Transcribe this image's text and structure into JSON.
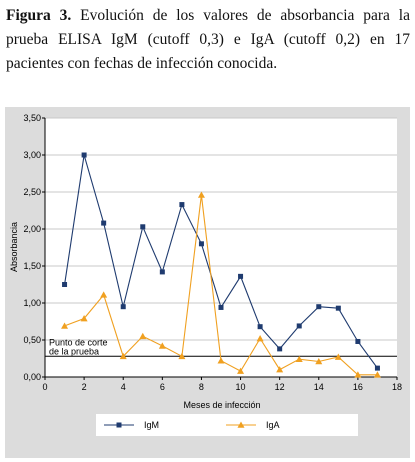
{
  "caption": {
    "label": "Figura 3.",
    "text": " Evolución de los valores de absorbancia para la prueba ELISA IgM (cutoff 0,3) e IgA (cutoff 0,2) en 17 pacientes con fechas de infección conocida."
  },
  "chart_data": {
    "type": "line",
    "xlabel": "Meses de infección",
    "ylabel": "Absorbancia",
    "xlim": [
      0,
      18
    ],
    "ylim": [
      0,
      3.5
    ],
    "x_ticks": [
      "0",
      "2",
      "4",
      "6",
      "8",
      "10",
      "12",
      "14",
      "16",
      "18"
    ],
    "y_ticks": [
      "0,00",
      "0,50",
      "1,00",
      "1,50",
      "2,00",
      "2,50",
      "3,00",
      "3,50"
    ],
    "grid": "horizontal",
    "legend_position": "bottom",
    "cutoff_line": {
      "y": 0.28,
      "label_line1": "Punto de corte",
      "label_line2": "de la prueba"
    },
    "series": [
      {
        "name": "IgM",
        "color": "#1f3b6f",
        "marker": "square",
        "x": [
          1,
          2,
          3,
          4,
          5,
          6,
          7,
          8,
          9,
          10,
          11,
          12,
          13,
          14,
          15,
          16,
          17
        ],
        "y": [
          1.25,
          3.0,
          2.08,
          0.95,
          2.03,
          1.42,
          2.33,
          1.8,
          0.94,
          1.36,
          0.68,
          0.38,
          0.69,
          0.95,
          0.93,
          0.48,
          0.12
        ]
      },
      {
        "name": "IgA",
        "color": "#f0a020",
        "marker": "triangle",
        "x": [
          1,
          2,
          3,
          4,
          5,
          6,
          7,
          8,
          9,
          10,
          11,
          12,
          13,
          14,
          15,
          16,
          17
        ],
        "y": [
          0.69,
          0.79,
          1.11,
          0.28,
          0.55,
          0.42,
          0.28,
          2.46,
          0.22,
          0.08,
          0.52,
          0.1,
          0.24,
          0.21,
          0.27,
          0.03,
          0.03
        ]
      }
    ]
  }
}
